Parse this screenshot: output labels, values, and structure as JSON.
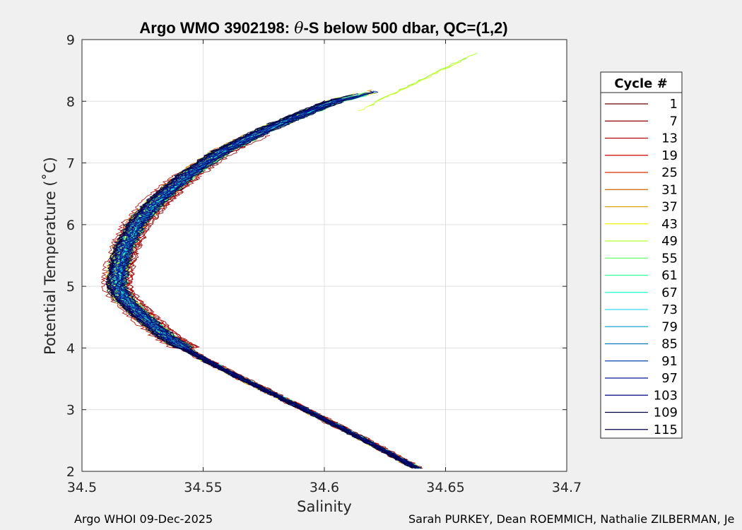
{
  "chart_data": {
    "type": "line",
    "title_prefix": "Argo WMO 3902198: ",
    "title_symbol": "θ",
    "title_suffix": "-S below 500 dbar,  QC=(1,2)",
    "xlabel": "Salinity",
    "ylabel": "Potential Temperature (˚C)",
    "xlim": [
      34.5,
      34.7
    ],
    "ylim": [
      2,
      9
    ],
    "x_ticks": [
      "34.5",
      "34.55",
      "34.6",
      "34.65",
      "34.7"
    ],
    "y_ticks": [
      "2",
      "3",
      "4",
      "5",
      "6",
      "7",
      "8",
      "9"
    ],
    "grid": true,
    "legend": {
      "title": "Cycle #",
      "placement": "outside-right",
      "entries": [
        "1",
        "7",
        "13",
        "19",
        "25",
        "31",
        "37",
        "43",
        "49",
        "55",
        "61",
        "67",
        "73",
        "79",
        "85",
        "91",
        "97",
        "103",
        "109",
        "115"
      ],
      "colors": [
        "#6b0000",
        "#8b0000",
        "#b00000",
        "#cc0000",
        "#dd3300",
        "#cc6600",
        "#e0a000",
        "#f0f000",
        "#b5ff3a",
        "#66ff66",
        "#33ff99",
        "#22ffcc",
        "#33ddee",
        "#1fa8d0",
        "#0077bb",
        "#0044aa",
        "#001a99",
        "#000080",
        "#000040",
        "#00004d"
      ]
    },
    "series_envelope": {
      "description_free_keys_only": true,
      "center_curve": {
        "temperature": [
          2.05,
          2.5,
          3.0,
          3.5,
          3.8,
          4.0,
          4.2,
          4.5,
          4.8,
          5.0,
          5.3,
          5.6,
          6.0,
          6.4,
          6.8,
          7.2,
          7.6,
          8.0,
          8.15
        ],
        "salinity": [
          34.638,
          34.617,
          34.592,
          34.566,
          34.551,
          34.542,
          34.534,
          34.525,
          34.517,
          34.514,
          34.515,
          34.517,
          34.522,
          34.531,
          34.543,
          34.558,
          34.579,
          34.604,
          34.619
        ]
      },
      "upper_extension": {
        "temperature": [
          8.0,
          8.2,
          8.4,
          8.6,
          8.78
        ],
        "salinity": [
          34.622,
          34.632,
          34.643,
          34.653,
          34.663
        ]
      },
      "spread_salinity": 0.004
    }
  },
  "footer": {
    "left": "Argo WHOI 09-Dec-2025",
    "right": "Sarah PURKEY, Dean ROEMMICH, Nathalie ZILBERMAN, Je"
  }
}
